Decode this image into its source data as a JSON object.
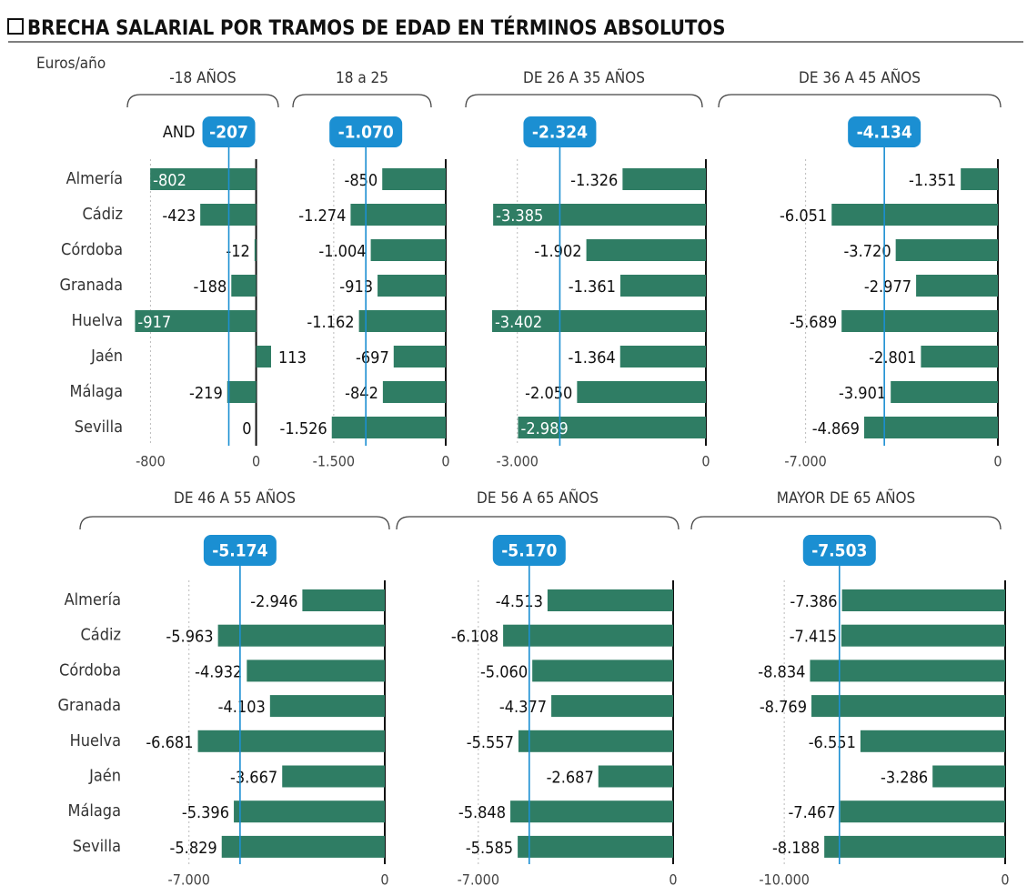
{
  "title": "BRECHA SALARIAL POR TRAMOS DE EDAD EN TÉRMINOS ABSOLUTOS",
  "unit_label": "Euros/año",
  "average_label": "AND",
  "categories": [
    "Almería",
    "Cádiz",
    "Córdoba",
    "Granada",
    "Huelva",
    "Jaén",
    "Málaga",
    "Sevilla"
  ],
  "chart_data": [
    {
      "type": "bar",
      "orientation": "horizontal",
      "title": "-18 AÑOS",
      "color": "#2f7d64",
      "values": [
        -802,
        -423,
        -12,
        -188,
        -917,
        113,
        -219,
        0
      ],
      "average": -207,
      "average_color": "#1b8fd2",
      "xlim": [
        -920,
        120
      ],
      "xticks": [
        -800,
        0
      ]
    },
    {
      "type": "bar",
      "orientation": "horizontal",
      "title": "18 a 25",
      "color": "#2f7d64",
      "values": [
        -850,
        -1274,
        -1004,
        -913,
        -1162,
        -697,
        -842,
        -1526
      ],
      "value_labels": [
        "-850",
        "-1.274",
        "-1.004",
        "-913",
        "-1.162",
        "-697",
        "-842",
        "-1.526"
      ],
      "average": {
        "value": -1070,
        "label": "-1.070"
      },
      "average_color": "#1b8fd2",
      "xlim": [
        -2400,
        0
      ],
      "xticks": [
        {
          "value": -1500,
          "label": "-1.500"
        },
        0
      ]
    },
    {
      "type": "bar",
      "orientation": "horizontal",
      "title": "DE 26 A 35 AÑOS",
      "color": "#2f7d64",
      "values": [
        -1326,
        -3385,
        -1902,
        -1361,
        -3402,
        -1364,
        -2050,
        -2989
      ],
      "value_labels": [
        "-1.326",
        "-3.385",
        "-1.902",
        "-1.361",
        "-3.402",
        "-1.364",
        "-2.050",
        "-2.989"
      ],
      "average": {
        "value": -2324,
        "label": "-2.324"
      },
      "average_color": "#1b8fd2",
      "xlim": [
        -3850,
        0
      ],
      "xticks": [
        {
          "value": -3000,
          "label": "-3.000"
        },
        0
      ]
    },
    {
      "type": "bar",
      "orientation": "horizontal",
      "title": "DE 36 A 45 AÑOS",
      "color": "#2f7d64",
      "values": [
        -1351,
        -6051,
        -3720,
        -2977,
        -5689,
        -2801,
        -3901,
        -4869
      ],
      "value_labels": [
        "-1.351",
        "-6.051",
        "-3.720",
        "-2.977",
        "-5.689",
        "-2.801",
        "-3.901",
        "-4.869"
      ],
      "average": {
        "value": -4134,
        "label": "-4.134"
      },
      "average_color": "#1b8fd2",
      "xlim": [
        -10000,
        0
      ],
      "xticks": [
        {
          "value": -7000,
          "label": "-7.000"
        },
        0
      ]
    },
    {
      "type": "bar",
      "orientation": "horizontal",
      "title": "DE 46 A 55 AÑOS",
      "color": "#2f7d64",
      "values": [
        -2946,
        -5963,
        -4932,
        -4103,
        -6681,
        -3667,
        -5396,
        -5829
      ],
      "value_labels": [
        "-2.946",
        "-5.963",
        "-4.932",
        "-4.103",
        "-6.681",
        "-3.667",
        "-5.396",
        "-5.829"
      ],
      "average": {
        "value": -5174,
        "label": "-5.174"
      },
      "average_color": "#1b8fd2",
      "xlim": [
        -9300,
        0
      ],
      "xticks": [
        {
          "value": -7000,
          "label": "-7.000"
        },
        0
      ]
    },
    {
      "type": "bar",
      "orientation": "horizontal",
      "title": "DE 56 A 65 AÑOS",
      "color": "#2f7d64",
      "values": [
        -4513,
        -6108,
        -5060,
        -4377,
        -5557,
        -2687,
        -5848,
        -5585
      ],
      "value_labels": [
        "-4.513",
        "-6.108",
        "-5.060",
        "-4.377",
        "-5.557",
        "-2.687",
        "-5.848",
        "-5.585"
      ],
      "average": {
        "value": -5170,
        "label": "-5.170"
      },
      "average_color": "#1b8fd2",
      "xlim": [
        -10000,
        0
      ],
      "xticks": [
        {
          "value": -7000,
          "label": "-7.000"
        },
        0
      ]
    },
    {
      "type": "bar",
      "orientation": "horizontal",
      "title": "MAYOR DE 65 AÑOS",
      "color": "#2f7d64",
      "values": [
        -7386,
        -7415,
        -8834,
        -8769,
        -6551,
        -3286,
        -7467,
        -8188
      ],
      "value_labels": [
        "-7.386",
        "-7.415",
        "-8.834",
        "-8.769",
        "-6.551",
        "-3.286",
        "-7.467",
        "-8.188"
      ],
      "average": {
        "value": -7503,
        "label": "-7.503"
      },
      "average_color": "#1b8fd2",
      "xlim": [
        -14000,
        0
      ],
      "xticks": [
        {
          "value": -10000,
          "label": "-10.000"
        },
        0
      ]
    }
  ]
}
